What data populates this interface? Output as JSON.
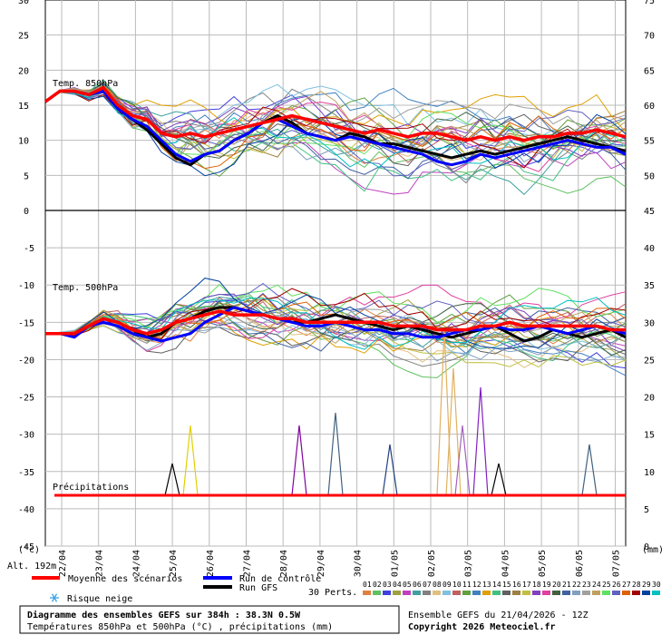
{
  "chart_data": {
    "type": "line",
    "panels": [
      {
        "name": "Temp. 850hPa",
        "left_axis": {
          "min": 0,
          "max": 30,
          "ticks": [
            0,
            5,
            10,
            15,
            20,
            25,
            30
          ]
        },
        "right_axis": {
          "min": 45,
          "max": 75,
          "ticks": [
            45,
            50,
            55,
            60,
            65,
            70,
            75
          ]
        }
      },
      {
        "name": "Temp. 500hPa",
        "left_axis": {
          "min": -45,
          "max": 0,
          "ticks": [
            -5,
            -10,
            -15,
            -20,
            -25,
            -30,
            -35,
            -40,
            -45
          ]
        },
        "right_axis": {
          "min": 0,
          "max": 45,
          "ticks": [
            0,
            5,
            10,
            15,
            20,
            25,
            30,
            35,
            40
          ]
        }
      },
      {
        "name": "Précipitations"
      }
    ],
    "x_ticks": [
      "22/04",
      "23/04",
      "24/04",
      "25/04",
      "26/04",
      "27/04",
      "28/04",
      "29/04",
      "30/04",
      "01/05",
      "02/05",
      "03/05",
      "04/05",
      "05/05",
      "06/05",
      "07/05"
    ],
    "unit_left": "(°c)",
    "unit_right": "(mm)",
    "altitude": "Alt. 192m",
    "series": [
      {
        "name": "Moyenne des scénarios",
        "color": "#ff0000",
        "t850": [
          15.5,
          17,
          17,
          16.5,
          17.5,
          15,
          13.5,
          13,
          11,
          10.5,
          11,
          10.5,
          11,
          11.5,
          12,
          12.5,
          13,
          13.5,
          13,
          12.5,
          12,
          11.5,
          11,
          11.5,
          11,
          10.5,
          11,
          11,
          10.5,
          10,
          10.5,
          10,
          10.5,
          10,
          10.5,
          10.5,
          11,
          11,
          11.5,
          11,
          10.5
        ],
        "t500": [
          -16.5,
          -16.5,
          -16.5,
          -15.5,
          -14.5,
          -15,
          -16,
          -16.5,
          -16,
          -15,
          -14.5,
          -14,
          -13.5,
          -14,
          -14,
          -14,
          -14.5,
          -14.5,
          -15,
          -15,
          -15,
          -15,
          -15,
          -15,
          -15.5,
          -15.5,
          -15.5,
          -16,
          -16,
          -16,
          -15.5,
          -15.5,
          -15,
          -15.5,
          -15.5,
          -15.5,
          -15.5,
          -15.5,
          -15.5,
          -16,
          -16
        ]
      },
      {
        "name": "Run de contrôle",
        "color": "#0000ff",
        "t850": [
          15.5,
          17,
          17,
          16.5,
          17,
          14.5,
          13,
          12,
          10,
          8,
          7,
          8,
          8.5,
          10,
          11,
          12.5,
          13,
          12,
          11,
          10.5,
          10,
          10.5,
          10,
          9.5,
          9,
          8.5,
          8,
          7,
          6.5,
          7,
          8,
          7.5,
          8,
          8.5,
          9,
          9.5,
          10,
          9.5,
          9,
          9,
          8
        ],
        "t500": [
          -16.5,
          -16.5,
          -17,
          -15.5,
          -15,
          -15.5,
          -16.5,
          -17,
          -17.5,
          -17,
          -16.5,
          -15,
          -14,
          -13,
          -13.5,
          -14,
          -14.5,
          -15,
          -15.5,
          -15.5,
          -15,
          -15.5,
          -16,
          -16,
          -16.5,
          -16.5,
          -17,
          -17,
          -16.5,
          -16,
          -16,
          -15.5,
          -16,
          -16,
          -15.5,
          -16,
          -16.5,
          -16,
          -15.5,
          -16,
          -16.5
        ]
      },
      {
        "name": "Run GFS",
        "color": "#000000",
        "t850": [
          15.5,
          17,
          17,
          16.5,
          17,
          14.5,
          13,
          11.5,
          9.5,
          7.5,
          6.5,
          8,
          8.5,
          10,
          11,
          12.5,
          13.5,
          12.5,
          11,
          10.5,
          10,
          11,
          10.5,
          9.5,
          9.5,
          9,
          8.5,
          8,
          7.5,
          8,
          8.5,
          8,
          8.5,
          9,
          9.5,
          10,
          10.5,
          10,
          9.5,
          9,
          8.5
        ],
        "t500": [
          -16.5,
          -16.5,
          -16.5,
          -15.5,
          -14.5,
          -15,
          -16,
          -17,
          -16.5,
          -15,
          -14.5,
          -13.5,
          -13,
          -13,
          -13.5,
          -14,
          -14.5,
          -15,
          -15,
          -14.5,
          -14,
          -14.5,
          -15,
          -15.5,
          -16,
          -15.5,
          -16,
          -16.5,
          -17,
          -16.5,
          -16,
          -15.5,
          -16.5,
          -17.5,
          -17,
          -16,
          -16.5,
          -17,
          -16.5,
          -16,
          -17
        ]
      }
    ],
    "precip_peaks": [
      {
        "x_index": 7,
        "value": 5,
        "color": "#000000"
      },
      {
        "x_index": 8,
        "value": 11,
        "color": "#e0d000"
      },
      {
        "x_index": 14,
        "value": 11,
        "color": "#8000a0"
      },
      {
        "x_index": 16,
        "value": 13,
        "color": "#406080"
      },
      {
        "x_index": 19,
        "value": 8,
        "color": "#204080"
      },
      {
        "x_index": 22,
        "value": 26,
        "color": "#e0b060"
      },
      {
        "x_index": 22.5,
        "value": 20,
        "color": "#e0b060"
      },
      {
        "x_index": 23,
        "value": 11,
        "color": "#a060c0"
      },
      {
        "x_index": 24,
        "value": 17,
        "color": "#8020c0"
      },
      {
        "x_index": 25,
        "value": 5,
        "color": "#000000"
      },
      {
        "x_index": 30,
        "value": 8,
        "color": "#406080"
      },
      {
        "x_index": 36,
        "value": 16,
        "color": "#604000"
      }
    ],
    "perturbation_label": "30 Perts.",
    "perturbation_numbers": [
      "01",
      "02",
      "03",
      "04",
      "05",
      "06",
      "07",
      "08",
      "09",
      "10",
      "11",
      "12",
      "13",
      "14",
      "15",
      "16",
      "17",
      "18",
      "19",
      "20",
      "21",
      "22",
      "23",
      "24",
      "25",
      "26",
      "27",
      "28",
      "29",
      "30"
    ],
    "perturbation_colors": [
      "#e08040",
      "#60c060",
      "#4040e0",
      "#a0a040",
      "#c040c0",
      "#40a0a0",
      "#808080",
      "#e0c080",
      "#80c0e0",
      "#c06060",
      "#60a040",
      "#4080c0",
      "#e0a000",
      "#40c080",
      "#606060",
      "#a08040",
      "#c0c040",
      "#8040c0",
      "#e040a0",
      "#406040",
      "#4060a0",
      "#80a0c0",
      "#a0a0a0",
      "#c0a060",
      "#60e060",
      "#6060c0",
      "#e06000",
      "#a00000",
      "#0040a0",
      "#00c0c0"
    ]
  },
  "legend": {
    "mean": "Moyenne des scénarios",
    "control": "Run de contrôle",
    "gfs": "Run GFS",
    "snow": "Risque neige",
    "snow_icon": "snowflake-icon",
    "perts": "30 Perts."
  },
  "footer": {
    "title": "Diagramme des ensembles GEFS sur 384h : 38.3N 0.5W",
    "subtitle": "Températures 850hPa et 500hPa (°C) , précipitations (mm)",
    "run": "Ensemble GEFS du 21/04/2026 - 12Z",
    "copyright": "Copyright 2026 Meteociel.fr"
  }
}
